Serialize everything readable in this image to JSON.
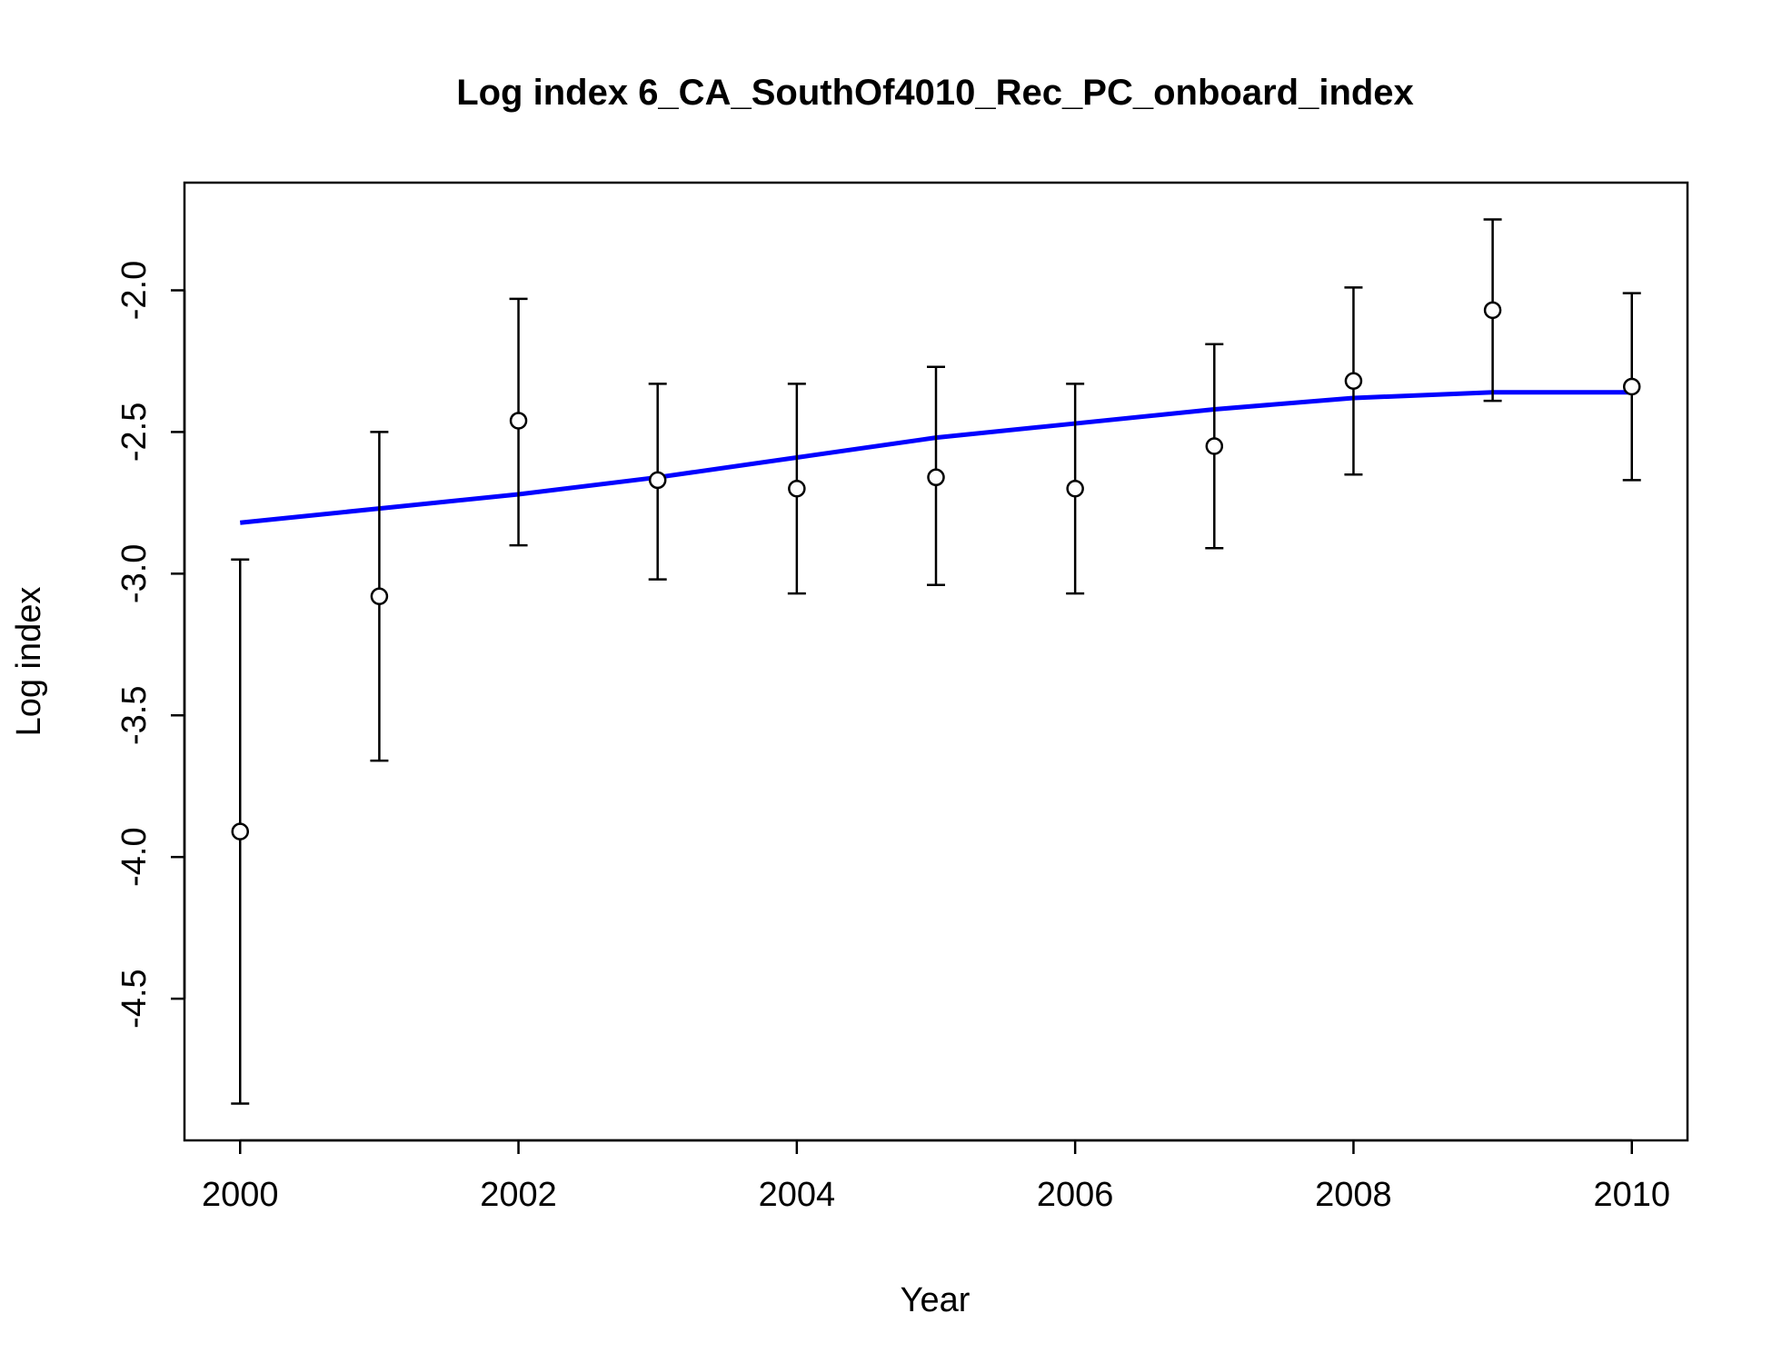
{
  "chart_data": {
    "type": "scatter",
    "title": "Log index 6_CA_SouthOf4010_Rec_PC_onboard_index",
    "xlabel": "Year",
    "ylabel": "Log index",
    "xlim": [
      1999.6,
      2010.4
    ],
    "ylim": [
      -5.0,
      -1.62
    ],
    "x_ticks": [
      2000,
      2002,
      2004,
      2006,
      2008,
      2010
    ],
    "x_tick_labels": [
      "2000",
      "2002",
      "2004",
      "2006",
      "2008",
      "2010"
    ],
    "y_ticks": [
      -4.5,
      -4.0,
      -3.5,
      -3.0,
      -2.5,
      -2.0
    ],
    "y_tick_labels": [
      "-4.5",
      "-4.0",
      "-3.5",
      "-3.0",
      "-2.5",
      "-2.0"
    ],
    "grid": false,
    "series": [
      {
        "kind": "observed",
        "marker": "open-circle",
        "color": "#000000",
        "points": [
          {
            "x": 2000,
            "y": -3.91,
            "lower": -4.87,
            "upper": -2.95
          },
          {
            "x": 2001,
            "y": -3.08,
            "lower": -3.66,
            "upper": -2.5
          },
          {
            "x": 2002,
            "y": -2.46,
            "lower": -2.9,
            "upper": -2.03
          },
          {
            "x": 2003,
            "y": -2.67,
            "lower": -3.02,
            "upper": -2.33
          },
          {
            "x": 2004,
            "y": -2.7,
            "lower": -3.07,
            "upper": -2.33
          },
          {
            "x": 2005,
            "y": -2.66,
            "lower": -3.04,
            "upper": -2.27
          },
          {
            "x": 2006,
            "y": -2.7,
            "lower": -3.07,
            "upper": -2.33
          },
          {
            "x": 2007,
            "y": -2.55,
            "lower": -2.91,
            "upper": -2.19
          },
          {
            "x": 2008,
            "y": -2.32,
            "lower": -2.65,
            "upper": -1.99
          },
          {
            "x": 2009,
            "y": -2.07,
            "lower": -2.39,
            "upper": -1.75
          },
          {
            "x": 2010,
            "y": -2.34,
            "lower": -2.67,
            "upper": -2.01
          }
        ]
      },
      {
        "kind": "expected",
        "style": "line",
        "color": "#0000ff",
        "x": [
          2000,
          2001,
          2002,
          2003,
          2004,
          2005,
          2006,
          2007,
          2008,
          2009,
          2010
        ],
        "y": [
          -2.82,
          -2.77,
          -2.72,
          -2.66,
          -2.59,
          -2.52,
          -2.47,
          -2.42,
          -2.38,
          -2.36,
          -2.36
        ]
      }
    ]
  }
}
